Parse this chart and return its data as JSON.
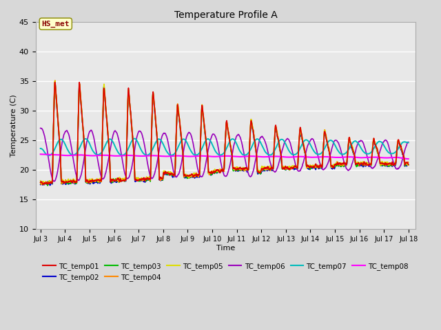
{
  "title": "Temperature Profile A",
  "xlabel": "Time",
  "ylabel": "Temperature (C)",
  "ylim": [
    10,
    45
  ],
  "xlim_days": [
    2.8,
    18.3
  ],
  "xtick_days": [
    3,
    4,
    5,
    6,
    7,
    8,
    9,
    10,
    11,
    12,
    13,
    14,
    15,
    16,
    17,
    18
  ],
  "xtick_labels": [
    "Jul 3",
    "Jul 4",
    "Jul 5",
    "Jul 6",
    "Jul 7",
    "Jul 8",
    "Jul 9",
    "Jul 10",
    "Jul 11",
    "Jul 12",
    "Jul 13",
    "Jul 14",
    "Jul 15",
    "Jul 16",
    "Jul 17",
    "Jul 18"
  ],
  "ytick_values": [
    10,
    15,
    20,
    25,
    30,
    35,
    40,
    45
  ],
  "series_colors": {
    "TC_temp01": "#dd0000",
    "TC_temp02": "#0000cc",
    "TC_temp03": "#00bb00",
    "TC_temp04": "#ff8800",
    "TC_temp05": "#dddd00",
    "TC_temp06": "#9900bb",
    "TC_temp07": "#00bbbb",
    "TC_temp08": "#ff00ff"
  },
  "annotation_text": "HS_met",
  "annotation_box_facecolor": "#ffffcc",
  "annotation_text_color": "#880000",
  "annotation_edge_color": "#888800",
  "fig_facecolor": "#d8d8d8",
  "plot_facecolor": "#e8e8e8",
  "grid_color": "#ffffff",
  "legend_ncol_row1": 6,
  "legend_ncol_row2": 2
}
